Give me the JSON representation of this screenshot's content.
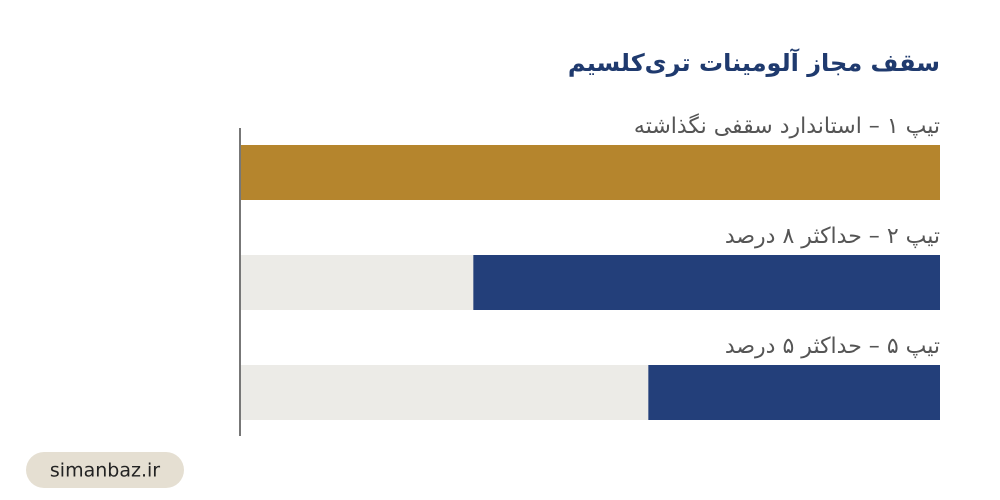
{
  "chart_data": {
    "type": "bar",
    "orientation": "horizontal",
    "title": "سقف مجاز آلومینات تری‌کلسیم",
    "categories": [
      "تیپ ۱ – استاندارد سقفی نگذاشته",
      "تیپ ۲ – حداکثر ۸ درصد",
      "تیپ ۵ – حداکثر ۵ درصد"
    ],
    "values": [
      12,
      8,
      5
    ],
    "colors": [
      "#b5852d",
      "#233f7a",
      "#233f7a"
    ],
    "xlim": [
      12,
      0
    ],
    "source": "simanbaz.ir"
  }
}
